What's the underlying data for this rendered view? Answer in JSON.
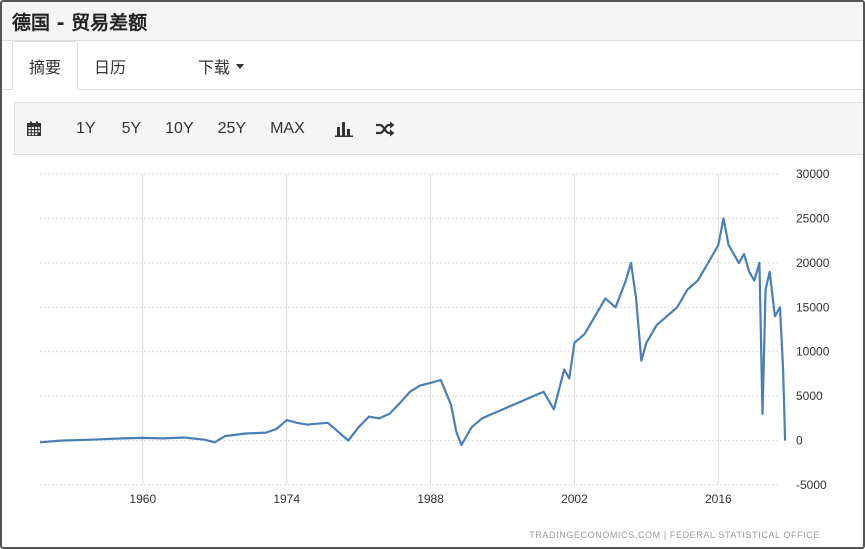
{
  "header": {
    "title": "德国 - 贸易差额"
  },
  "tabs": [
    {
      "label": "摘要",
      "active": true
    },
    {
      "label": "日历",
      "active": false
    },
    {
      "label": "下载",
      "active": false
    }
  ],
  "toolbar": {
    "calendar_icon": "calendar-icon",
    "ranges": [
      "1Y",
      "5Y",
      "10Y",
      "25Y",
      "MAX"
    ],
    "chart_type_icon": "bar-chart-icon",
    "compare_icon": "shuffle-icon"
  },
  "colors": {
    "line": "#4a7fb5",
    "grid": "#dcdcdc",
    "toolbar_bg": "#f5f5f5"
  },
  "chart_data": {
    "type": "line",
    "title": "",
    "xlabel": "",
    "ylabel": "",
    "x_ticks": [
      "1960",
      "1974",
      "1988",
      "2002",
      "2016"
    ],
    "y_ticks": [
      30000,
      25000,
      20000,
      15000,
      10000,
      5000,
      0,
      -5000
    ],
    "ylim": [
      -5000,
      30000
    ],
    "xlim": [
      1950,
      2022
    ],
    "grid": true,
    "credit": "TRADINGECONOMICS.COM | FEDERAL STATISTICAL OFFICE",
    "series": [
      {
        "x": [
          1950,
          1952,
          1955,
          1958,
          1960,
          1962,
          1964,
          1966,
          1967,
          1968,
          1970,
          1972,
          1973,
          1974,
          1975,
          1976,
          1977,
          1978,
          1979,
          1980,
          1981,
          1982,
          1983,
          1984,
          1985,
          1986,
          1987,
          1988,
          1989,
          1990,
          1990.5,
          1991,
          1992,
          1993,
          1994,
          1995,
          1996,
          1997,
          1998,
          1999,
          2000,
          2001,
          2001.5,
          2002,
          2003,
          2004,
          2005,
          2006,
          2007,
          2007.5,
          2008,
          2008.5,
          2009,
          2010,
          2011,
          2012,
          2013,
          2014,
          2015,
          2015.5,
          2016,
          2016.5,
          2017,
          2018,
          2018.5,
          2019,
          2019.5,
          2020,
          2020.3,
          2020.6,
          2021,
          2021.5,
          2022,
          2022.3,
          2022.5
        ],
        "values": [
          -200,
          0,
          100,
          250,
          300,
          250,
          350,
          100,
          -200,
          500,
          800,
          900,
          1300,
          2300,
          2000,
          1800,
          1900,
          2000,
          1000,
          0,
          1500,
          2700,
          2500,
          3000,
          4200,
          5500,
          6200,
          6500,
          6800,
          4000,
          1000,
          -500,
          1500,
          2500,
          3000,
          3500,
          4000,
          4500,
          5000,
          5500,
          3500,
          8000,
          7000,
          11000,
          12000,
          14000,
          16000,
          15000,
          18000,
          20000,
          16000,
          9000,
          11000,
          13000,
          14000,
          15000,
          17000,
          18000,
          20000,
          21000,
          22000,
          25000,
          22000,
          20000,
          21000,
          19000,
          18000,
          20000,
          3000,
          17000,
          19000,
          14000,
          15000,
          8000,
          0
        ]
      }
    ]
  }
}
